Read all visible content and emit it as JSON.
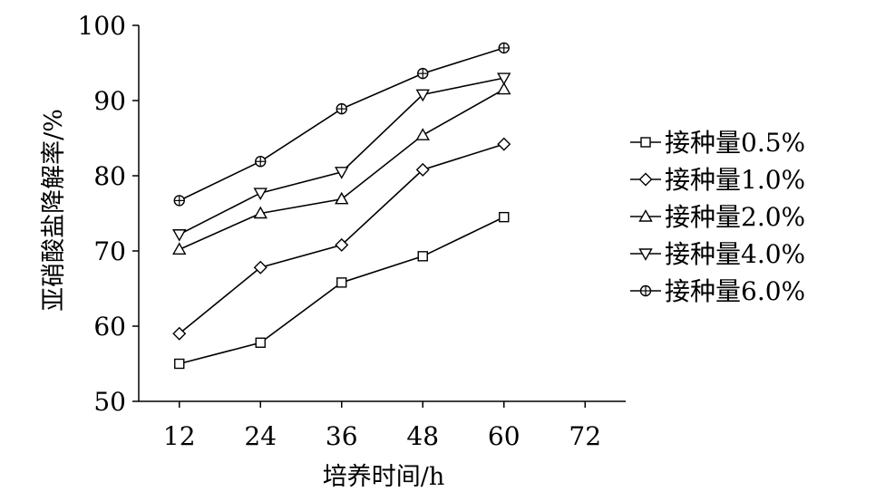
{
  "chart_data": {
    "type": "line",
    "xlabel": "培养时间/h",
    "ylabel": "亚硝酸盐降解率/%",
    "x": [
      12,
      24,
      36,
      48,
      60
    ],
    "x_ticks": [
      "12",
      "24",
      "36",
      "48",
      "60",
      "72"
    ],
    "y_ticks": [
      "50",
      "60",
      "70",
      "80",
      "90",
      "100"
    ],
    "xlim": [
      6,
      78
    ],
    "ylim": [
      50,
      100
    ],
    "grid": false,
    "legend_position": "right",
    "series": [
      {
        "name": "接种量0.5%",
        "marker": "square",
        "values": [
          55.0,
          57.8,
          65.8,
          69.3,
          74.5
        ]
      },
      {
        "name": "接种量1.0%",
        "marker": "diamond",
        "values": [
          59.0,
          67.8,
          70.8,
          80.8,
          84.2
        ]
      },
      {
        "name": "接种量2.0%",
        "marker": "triangle-up",
        "values": [
          70.2,
          75.0,
          76.9,
          85.4,
          91.5
        ]
      },
      {
        "name": "接种量4.0%",
        "marker": "triangle-down",
        "values": [
          72.2,
          77.7,
          80.5,
          90.8,
          93.0
        ]
      },
      {
        "name": "接种量6.0%",
        "marker": "circle-cross",
        "values": [
          76.7,
          81.9,
          88.9,
          93.6,
          97.0
        ]
      }
    ]
  }
}
